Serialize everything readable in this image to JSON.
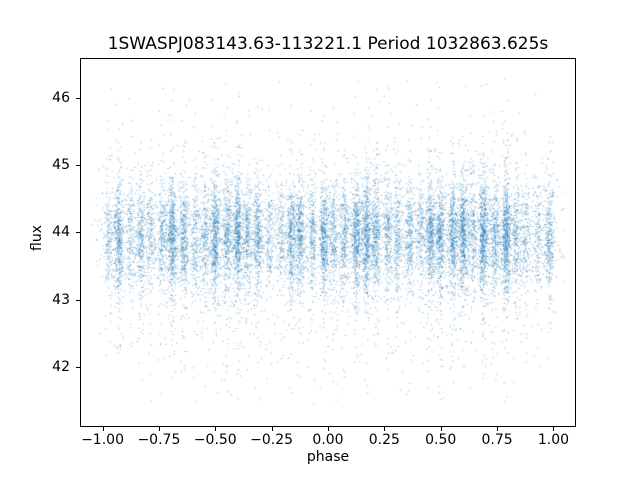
{
  "figure": {
    "title": "1SWASPJ083143.63-113221.1 Period 1032863.625s",
    "xlabel": "phase",
    "ylabel": "flux"
  },
  "chart_data": {
    "type": "scatter",
    "title": "1SWASPJ083143.63-113221.1 Period 1032863.625s",
    "xlabel": "phase",
    "ylabel": "flux",
    "xlim": [
      -1.1,
      1.1
    ],
    "ylim": [
      41.1,
      46.6
    ],
    "grid": false,
    "legend": null,
    "x_ticks": {
      "values": [
        -1.0,
        -0.75,
        -0.5,
        -0.25,
        0.0,
        0.25,
        0.5,
        0.75,
        1.0
      ],
      "labels": [
        "−1.00",
        "−0.75",
        "−0.50",
        "−0.25",
        "0.00",
        "0.25",
        "0.50",
        "0.75",
        "1.00"
      ]
    },
    "y_ticks": {
      "values": [
        42,
        43,
        44,
        45,
        46
      ],
      "labels": [
        "42",
        "43",
        "44",
        "45",
        "46"
      ]
    },
    "marker_color": "#1f77b4",
    "marker_alpha": 0.55,
    "marker_size_px": 1,
    "n_points": 18000,
    "seed": 42,
    "distribution": {
      "description": "Phase-folded SuperWASP light curve shown over phase [-1,1]: ~21 narrow vertical observation clusters per phase unit (pattern repeated in both halves), flux densely concentrated near 43.9 with heavy-tailed scatter reaching ~41.5 to ~46.3",
      "clusters_per_unit": 21,
      "cluster_center_jitter": 0.012,
      "cluster_sigma_phase": 0.01,
      "wide_sigma_phase": 0.022,
      "wide_fraction": 0.18,
      "uniform_fraction": 0.04,
      "flux_components": [
        {
          "weight": 0.78,
          "mean": 43.95,
          "std": 0.38
        },
        {
          "weight": 0.16,
          "mean": 43.85,
          "std": 0.75
        },
        {
          "weight": 0.06,
          "mean": 43.8,
          "std": 1.25
        }
      ],
      "flux_range": [
        41.45,
        46.35
      ],
      "phase_range": [
        -1.05,
        1.05
      ]
    }
  }
}
